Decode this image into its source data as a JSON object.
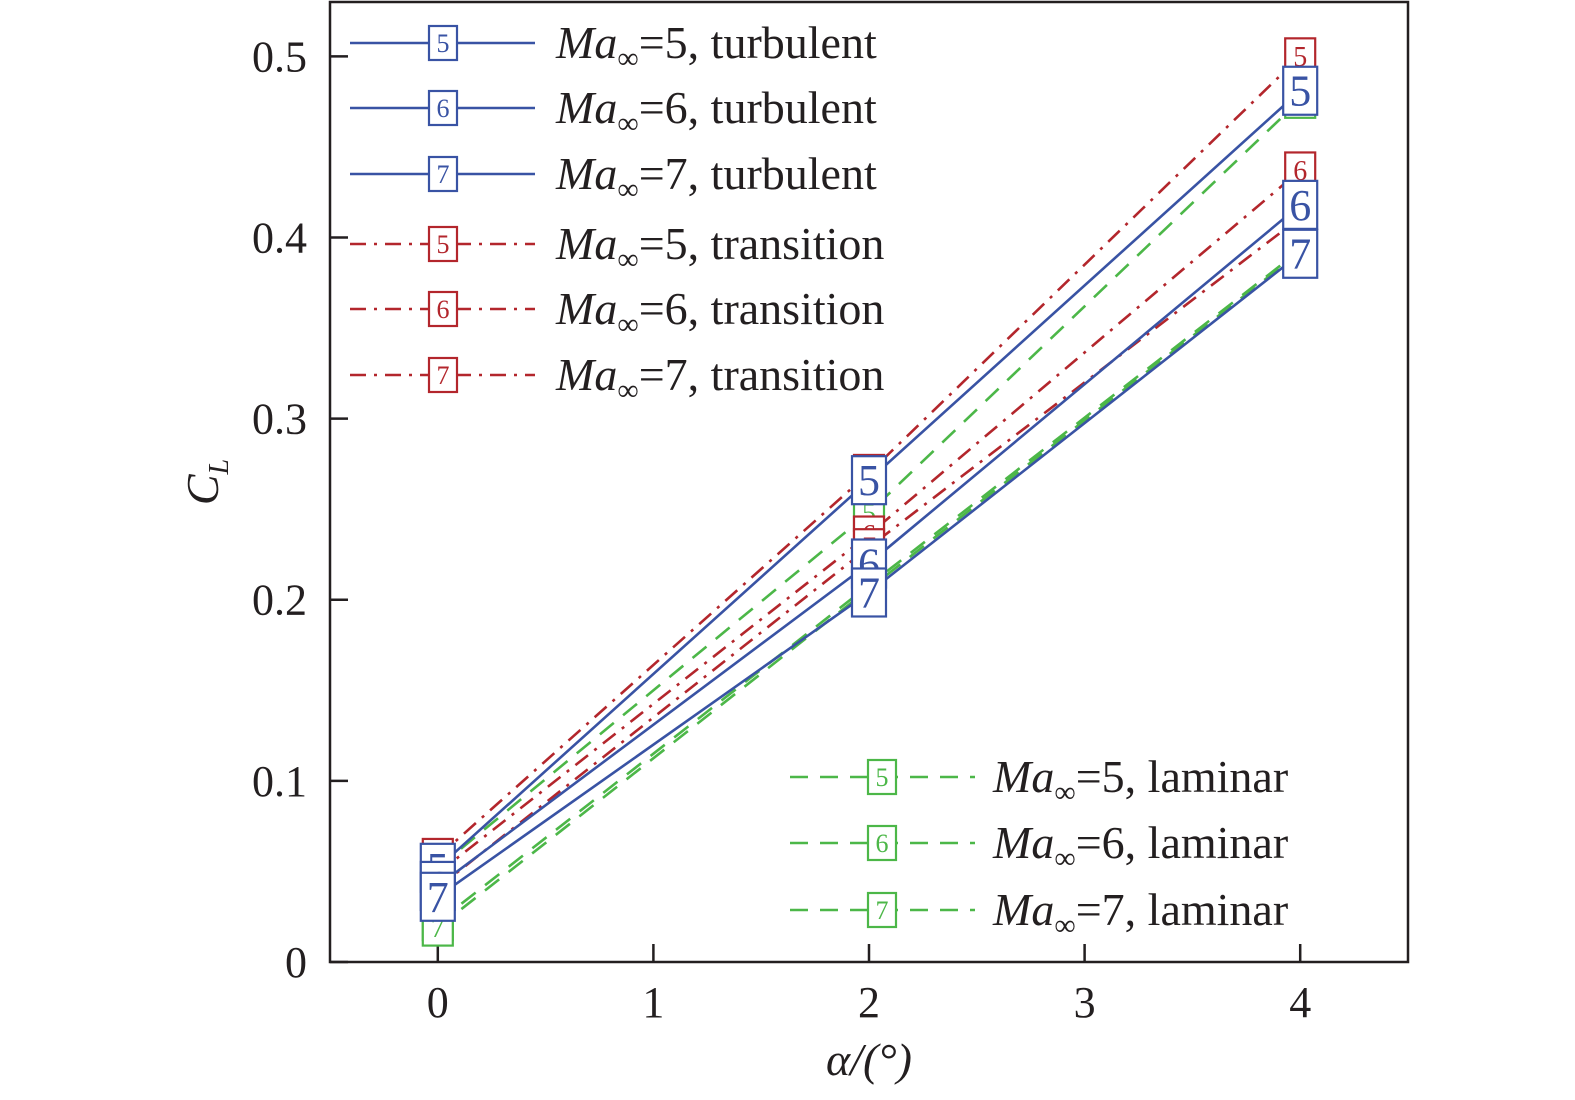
{
  "chart_data": {
    "type": "line",
    "title": "",
    "xlabel": "α/(°)",
    "ylabel": "C_L",
    "ylabel_main": "C",
    "ylabel_sub": "L",
    "x": [
      0,
      2,
      4
    ],
    "xlim": [
      -0.5,
      4.5
    ],
    "ylim": [
      0,
      0.53
    ],
    "xticks": [
      0,
      1,
      2,
      3,
      4
    ],
    "xtick_labels": [
      "0",
      "1",
      "2",
      "3",
      "4"
    ],
    "yticks": [
      0,
      0.1,
      0.2,
      0.3,
      0.4,
      0.5
    ],
    "ytick_labels": [
      "0",
      "0.1",
      "0.2",
      "0.3",
      "0.4",
      "0.5"
    ],
    "grid": false,
    "legend_positions": [
      "top-left",
      "bottom-right"
    ],
    "series": [
      {
        "name": "Ma∞=5, turbulent",
        "regime": "turbulent",
        "mach": "5",
        "values": [
          0.052,
          0.266,
          0.481
        ]
      },
      {
        "name": "Ma∞=6, turbulent",
        "regime": "turbulent",
        "mach": "6",
        "values": [
          0.042,
          0.22,
          0.418
        ]
      },
      {
        "name": "Ma∞=7, turbulent",
        "regime": "turbulent",
        "mach": "7",
        "values": [
          0.036,
          0.204,
          0.391
        ]
      },
      {
        "name": "Ma∞=5, transition",
        "regime": "transition",
        "mach": "5",
        "values": [
          0.058,
          0.27,
          0.5
        ]
      },
      {
        "name": "Ma∞=6, transition",
        "regime": "transition",
        "mach": "6",
        "values": [
          0.049,
          0.236,
          0.437
        ]
      },
      {
        "name": "Ma∞=7, transition",
        "regime": "transition",
        "mach": "7",
        "values": [
          0.041,
          0.229,
          0.411
        ]
      },
      {
        "name": "Ma∞=5, laminar",
        "regime": "laminar",
        "mach": "5",
        "values": [
          0.052,
          0.248,
          0.476
        ]
      },
      {
        "name": "Ma∞=6, laminar",
        "regime": "laminar",
        "mach": "6",
        "values": [
          0.022,
          0.208,
          0.393
        ]
      },
      {
        "name": "Ma∞=7, laminar",
        "regime": "laminar",
        "mach": "7",
        "values": [
          0.019,
          0.206,
          0.392
        ]
      }
    ],
    "legend": [
      {
        "symbol": "Ma",
        "sub": "∞",
        "rest": "=5, turbulent"
      },
      {
        "symbol": "Ma",
        "sub": "∞",
        "rest": "=6, turbulent"
      },
      {
        "symbol": "Ma",
        "sub": "∞",
        "rest": "=7, turbulent"
      },
      {
        "symbol": "Ma",
        "sub": "∞",
        "rest": "=5, transition"
      },
      {
        "symbol": "Ma",
        "sub": "∞",
        "rest": "=6, transition"
      },
      {
        "symbol": "Ma",
        "sub": "∞",
        "rest": "=7, transition"
      },
      {
        "symbol": "Ma",
        "sub": "∞",
        "rest": "=5, laminar"
      },
      {
        "symbol": "Ma",
        "sub": "∞",
        "rest": "=6, laminar"
      },
      {
        "symbol": "Ma",
        "sub": "∞",
        "rest": "=7, laminar"
      }
    ],
    "colors": {
      "turbulent": "#3953a4",
      "transition": "#b3262c",
      "laminar": "#4cb748",
      "axis": "#231f20"
    }
  }
}
